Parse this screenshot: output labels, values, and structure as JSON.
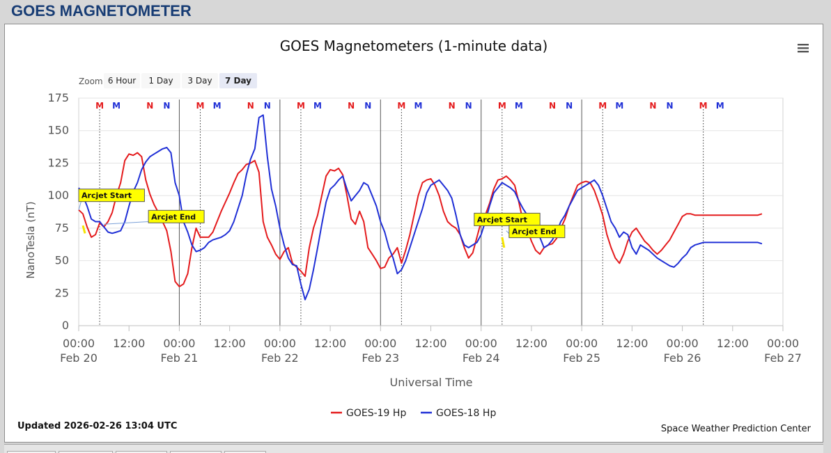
{
  "page": {
    "title": "GOES MAGNETOMETER"
  },
  "chart_data": {
    "type": "line",
    "title": "GOES Magnetometers (1-minute data)",
    "xlabel": "Universal Time",
    "ylabel": "NanoTesla (nT)",
    "ylim": [
      0,
      175
    ],
    "yticks": [
      0,
      25,
      50,
      75,
      100,
      125,
      150,
      175
    ],
    "xlim_hours": [
      0,
      168
    ],
    "xtick_hours": [
      0,
      12,
      24,
      36,
      48,
      60,
      72,
      84,
      96,
      108,
      120,
      132,
      144,
      156,
      168
    ],
    "xticks": [
      {
        "time": "00:00",
        "date": "Feb 20"
      },
      {
        "time": "12:00",
        "date": ""
      },
      {
        "time": "00:00",
        "date": "Feb 21"
      },
      {
        "time": "12:00",
        "date": ""
      },
      {
        "time": "00:00",
        "date": "Feb 22"
      },
      {
        "time": "12:00",
        "date": ""
      },
      {
        "time": "00:00",
        "date": "Feb 23"
      },
      {
        "time": "12:00",
        "date": ""
      },
      {
        "time": "00:00",
        "date": "Feb 24"
      },
      {
        "time": "12:00",
        "date": ""
      },
      {
        "time": "00:00",
        "date": "Feb 25"
      },
      {
        "time": "12:00",
        "date": ""
      },
      {
        "time": "00:00",
        "date": "Feb 26"
      },
      {
        "time": "12:00",
        "date": ""
      },
      {
        "time": "00:00",
        "date": "Feb 27"
      }
    ],
    "grid": true,
    "legend_position": "bottom-center",
    "zoom": {
      "label": "Zoom",
      "buttons": [
        "6 Hour",
        "1 Day",
        "3 Day",
        "7 Day"
      ],
      "selected": "7 Day"
    },
    "series": [
      {
        "name": "GOES-19 Hp",
        "color": "#e41a1c",
        "x_hours": [
          0,
          1,
          2,
          3,
          4,
          5,
          6,
          7,
          8,
          9,
          10,
          11,
          12,
          13,
          14,
          15,
          16,
          17,
          18,
          19,
          20,
          21,
          22,
          23,
          24,
          25,
          26,
          27,
          28,
          29,
          30,
          31,
          32,
          33,
          34,
          35,
          36,
          37,
          38,
          39,
          40,
          41,
          42,
          43,
          44,
          45,
          46,
          47,
          48,
          49,
          50,
          51,
          52,
          53,
          54,
          55,
          56,
          57,
          58,
          59,
          60,
          61,
          62,
          63,
          64,
          65,
          66,
          67,
          68,
          69,
          70,
          71,
          72,
          73,
          74,
          75,
          76,
          77,
          78,
          79,
          80,
          81,
          82,
          83,
          84,
          85,
          86,
          87,
          88,
          89,
          90,
          91,
          92,
          93,
          94,
          95,
          96,
          97,
          98,
          99,
          100,
          101,
          102,
          103,
          104,
          105,
          106,
          107,
          108,
          109,
          110,
          111,
          112,
          113,
          114,
          115,
          116,
          117,
          118,
          119,
          120,
          121,
          122,
          123,
          124,
          125,
          126,
          127,
          128,
          129,
          130,
          131,
          132,
          133,
          134,
          135,
          136,
          137,
          138,
          139,
          140,
          141,
          142,
          143,
          144,
          145,
          146,
          147,
          148,
          149,
          150,
          151,
          152,
          153,
          154,
          155,
          156,
          157,
          158,
          159,
          160,
          161,
          162,
          163
        ],
        "values": [
          89,
          86,
          76,
          68,
          70,
          79,
          76,
          80,
          87,
          100,
          110,
          127,
          132,
          131,
          133,
          130,
          112,
          101,
          93,
          87,
          80,
          73,
          57,
          34,
          30,
          32,
          40,
          60,
          75,
          68,
          68,
          68,
          72,
          80,
          88,
          95,
          102,
          110,
          117,
          120,
          124,
          125,
          127,
          118,
          80,
          68,
          62,
          55,
          51,
          57,
          60,
          48,
          45,
          42,
          38,
          60,
          75,
          85,
          100,
          115,
          120,
          119,
          121,
          116,
          100,
          82,
          78,
          88,
          80,
          60,
          55,
          50,
          44,
          45,
          52,
          55,
          60,
          48,
          58,
          70,
          85,
          100,
          110,
          112,
          113,
          108,
          100,
          88,
          80,
          77,
          75,
          70,
          60,
          52,
          56,
          68,
          80,
          85,
          94,
          105,
          112,
          113,
          115,
          112,
          108,
          95,
          80,
          74,
          65,
          58,
          55,
          60,
          62,
          63,
          67,
          75,
          82,
          92,
          100,
          108,
          110,
          111,
          110,
          104,
          95,
          85,
          70,
          60,
          52,
          48,
          55,
          65,
          72,
          75,
          70,
          65,
          62,
          58,
          55,
          58,
          62,
          66,
          72,
          78,
          84,
          86,
          86,
          85,
          85,
          85,
          85,
          85,
          85,
          85,
          85,
          85,
          85,
          85,
          85,
          85,
          85,
          85,
          85,
          86
        ]
      },
      {
        "name": "GOES-18 Hp",
        "color": "#1f2fd6",
        "x_hours": [
          0,
          1,
          2,
          3,
          4,
          5,
          6,
          7,
          8,
          9,
          10,
          11,
          12,
          13,
          14,
          15,
          16,
          17,
          18,
          19,
          20,
          21,
          22,
          23,
          24,
          25,
          26,
          27,
          28,
          29,
          30,
          31,
          32,
          33,
          34,
          35,
          36,
          37,
          38,
          39,
          40,
          41,
          42,
          43,
          44,
          45,
          46,
          47,
          48,
          49,
          50,
          51,
          52,
          53,
          54,
          55,
          56,
          57,
          58,
          59,
          60,
          61,
          62,
          63,
          64,
          65,
          66,
          67,
          68,
          69,
          70,
          71,
          72,
          73,
          74,
          75,
          76,
          77,
          78,
          79,
          80,
          81,
          82,
          83,
          84,
          85,
          86,
          87,
          88,
          89,
          90,
          91,
          92,
          93,
          94,
          95,
          96,
          97,
          98,
          99,
          100,
          101,
          102,
          103,
          104,
          105,
          106,
          107,
          108,
          109,
          110,
          111,
          112,
          113,
          114,
          115,
          116,
          117,
          118,
          119,
          120,
          121,
          122,
          123,
          124,
          125,
          126,
          127,
          128,
          129,
          130,
          131,
          132,
          133,
          134,
          135,
          136,
          137,
          138,
          139,
          140,
          141,
          142,
          143,
          144,
          145,
          146,
          147,
          148,
          149,
          150,
          151,
          152,
          153,
          154,
          155,
          156,
          157,
          158,
          159,
          160,
          161,
          162,
          163
        ],
        "values": [
          106,
          100,
          92,
          82,
          80,
          80,
          76,
          72,
          71,
          72,
          73,
          80,
          92,
          103,
          110,
          120,
          126,
          130,
          132,
          134,
          136,
          137,
          133,
          110,
          100,
          80,
          72,
          62,
          57,
          58,
          60,
          64,
          66,
          67,
          68,
          70,
          73,
          80,
          90,
          100,
          116,
          128,
          136,
          160,
          162,
          130,
          105,
          92,
          75,
          62,
          52,
          47,
          46,
          32,
          20,
          28,
          43,
          60,
          78,
          95,
          105,
          108,
          112,
          115,
          105,
          96,
          100,
          104,
          110,
          108,
          100,
          92,
          80,
          72,
          60,
          52,
          40,
          43,
          50,
          60,
          70,
          80,
          90,
          102,
          108,
          110,
          112,
          108,
          104,
          98,
          85,
          70,
          62,
          60,
          62,
          64,
          70,
          80,
          92,
          102,
          106,
          110,
          108,
          106,
          103,
          96,
          90,
          85,
          82,
          73,
          68,
          60,
          62,
          66,
          72,
          80,
          85,
          92,
          98,
          104,
          106,
          108,
          110,
          112,
          108,
          100,
          90,
          80,
          75,
          68,
          72,
          70,
          60,
          55,
          62,
          60,
          58,
          55,
          52,
          50,
          48,
          46,
          45,
          48,
          52,
          55,
          60,
          62,
          63,
          64,
          64,
          64,
          64,
          64,
          64,
          64,
          64,
          64,
          64,
          64,
          64,
          64,
          64,
          63
        ]
      }
    ],
    "marker_rows": {
      "M_hours_red": [
        5,
        29,
        53,
        77,
        101,
        125,
        149
      ],
      "M_hours_blue": [
        9,
        33,
        57,
        81,
        105,
        129,
        153
      ],
      "N_hours_red": [
        17,
        41,
        65,
        89,
        113,
        137
      ],
      "N_hours_blue": [
        21,
        45,
        69,
        93,
        117,
        141
      ]
    },
    "marker_labels": {
      "M": "M",
      "N": "N"
    },
    "midnight_lines_hours": [
      24,
      48,
      72,
      96,
      120
    ],
    "dotted_lines_hours": [
      5,
      29,
      53,
      77,
      101,
      125,
      149
    ],
    "annotations": [
      {
        "text": "Arcjet Start",
        "hour": 0,
        "value": 89
      },
      {
        "text": "Arcjet End",
        "hour": 6,
        "value": 78
      },
      {
        "text": "Arcjet Start",
        "hour": 100,
        "value": 79
      },
      {
        "text": "Arcjet End",
        "hour": 102,
        "value": 73
      }
    ],
    "yellow_marks": [
      {
        "hour": 1,
        "value_from": 77,
        "value_to": 71
      },
      {
        "hour": 101,
        "value_from": 68,
        "value_to": 60
      }
    ],
    "updated": "Updated 2026-02-26 13:04 UTC",
    "credit": "Space Weather Prediction Center"
  }
}
